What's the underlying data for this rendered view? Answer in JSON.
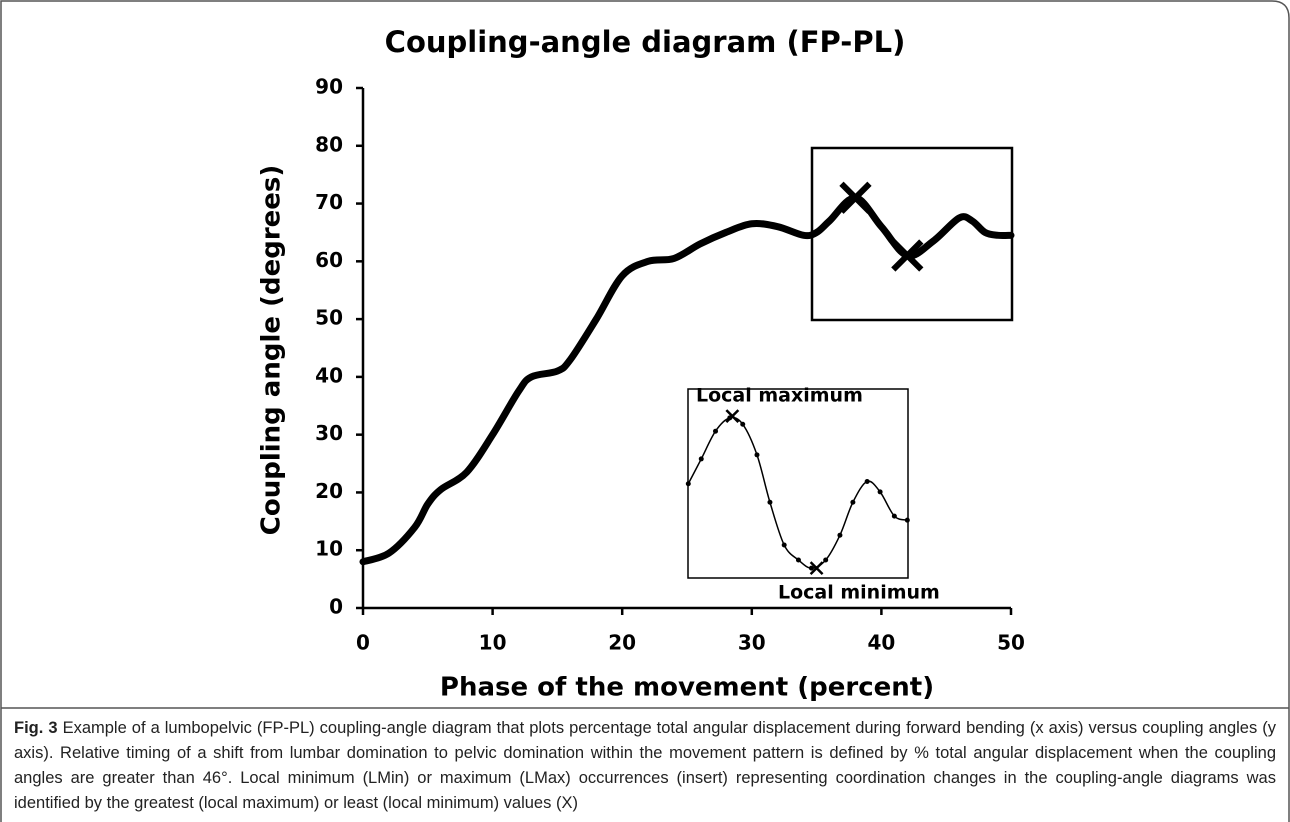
{
  "chart_data": {
    "type": "line",
    "title": "Coupling-angle diagram (FP-PL)",
    "x_label": "Phase of the movement (percent)",
    "y_label": "Coupling angle (degrees)",
    "xlim": [
      0,
      50
    ],
    "ylim": [
      0,
      90
    ],
    "xticks": [
      0,
      10,
      20,
      30,
      40,
      50
    ],
    "yticks": [
      0,
      10,
      20,
      30,
      40,
      50,
      60,
      70,
      80,
      90
    ],
    "series": [
      {
        "color": "#000000",
        "x": [
          0,
          2,
          4,
          5,
          6,
          8,
          10,
          12,
          13,
          15,
          16,
          18,
          20,
          22,
          24,
          26,
          28,
          30,
          32,
          34,
          35,
          36,
          38,
          40,
          42,
          44,
          46,
          47,
          48,
          49,
          50
        ],
        "values": [
          8,
          9.5,
          14,
          18,
          20.5,
          23.5,
          30,
          37.5,
          40,
          41,
          43,
          50,
          57.5,
          60,
          60.5,
          63,
          65,
          66.5,
          66,
          64.5,
          65,
          67,
          71,
          66,
          61,
          63.5,
          67.5,
          67,
          65,
          64.5,
          64.5
        ]
      }
    ],
    "markers": {
      "x": [
        38,
        42
      ],
      "values": [
        71,
        61
      ]
    },
    "inset": {
      "x": [
        25.1,
        26.1,
        27.2,
        28.3,
        29.3,
        30.4,
        31.4,
        32.5,
        33.6,
        34.6,
        35.7,
        36.8,
        37.8,
        38.9,
        39.9,
        41.0,
        42.0
      ],
      "values": [
        21.5,
        25.8,
        30.6,
        32.9,
        31.8,
        26.5,
        18.3,
        10.9,
        8.3,
        6.9,
        8.3,
        12.6,
        18.3,
        21.9,
        20.1,
        15.9,
        15.2
      ],
      "markers": {
        "x": [
          28.5,
          35.0
        ],
        "values": [
          33.2,
          6.9
        ]
      },
      "max_label": "Local maximum",
      "min_label": "Local minimum"
    }
  },
  "caption": {
    "label": "Fig. 3",
    "text": "Example of a lumbopelvic (FP-PL) coupling-angle diagram that plots percentage total angular displacement during forward bending (x axis) versus coupling angles (y axis). Relative timing of a shift from lumbar domination to pelvic domination within the movement pattern is defined by % total angular displacement when the coupling angles are greater than 46°. Local minimum (LMin) or maximum (LMax) occurrences (insert) representing coordination changes in the coupling-angle diagrams was identified by the greatest (local maximum) or least (local minimum) values (X)"
  }
}
